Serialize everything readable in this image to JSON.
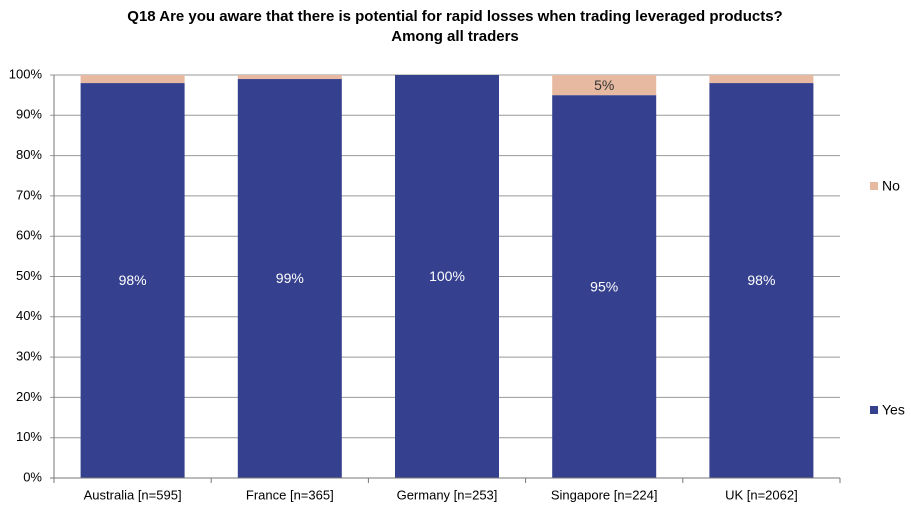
{
  "chart_data": {
    "type": "stacked_bar",
    "title": "Q18 Are you aware that there is potential for rapid losses when trading leveraged products?",
    "subtitle": "Among all traders",
    "categories": [
      "Australia [n=595]",
      "France [n=365]",
      "Germany [n=253]",
      "Singapore [n=224]",
      "UK [n=2062]"
    ],
    "series": [
      {
        "name": "Yes",
        "color": "#35408f",
        "values": [
          98,
          99,
          100,
          95,
          98
        ],
        "value_labels": [
          "98%",
          "99%",
          "100%",
          "95%",
          "98%"
        ]
      },
      {
        "name": "No",
        "color": "#e6b9a0",
        "values": [
          2,
          1,
          0,
          5,
          2
        ],
        "value_labels": [
          null,
          null,
          null,
          "5%",
          null
        ]
      }
    ],
    "ylim": [
      0,
      100
    ],
    "yticks": [
      {
        "value": 0,
        "label": "0%"
      },
      {
        "value": 10,
        "label": "10%"
      },
      {
        "value": 20,
        "label": "20%"
      },
      {
        "value": 30,
        "label": "30%"
      },
      {
        "value": 40,
        "label": "40%"
      },
      {
        "value": 50,
        "label": "50%"
      },
      {
        "value": 60,
        "label": "60%"
      },
      {
        "value": 70,
        "label": "70%"
      },
      {
        "value": 80,
        "label": "80%"
      },
      {
        "value": 90,
        "label": "90%"
      },
      {
        "value": 100,
        "label": "100%"
      }
    ],
    "grid": true,
    "legend": "right"
  }
}
